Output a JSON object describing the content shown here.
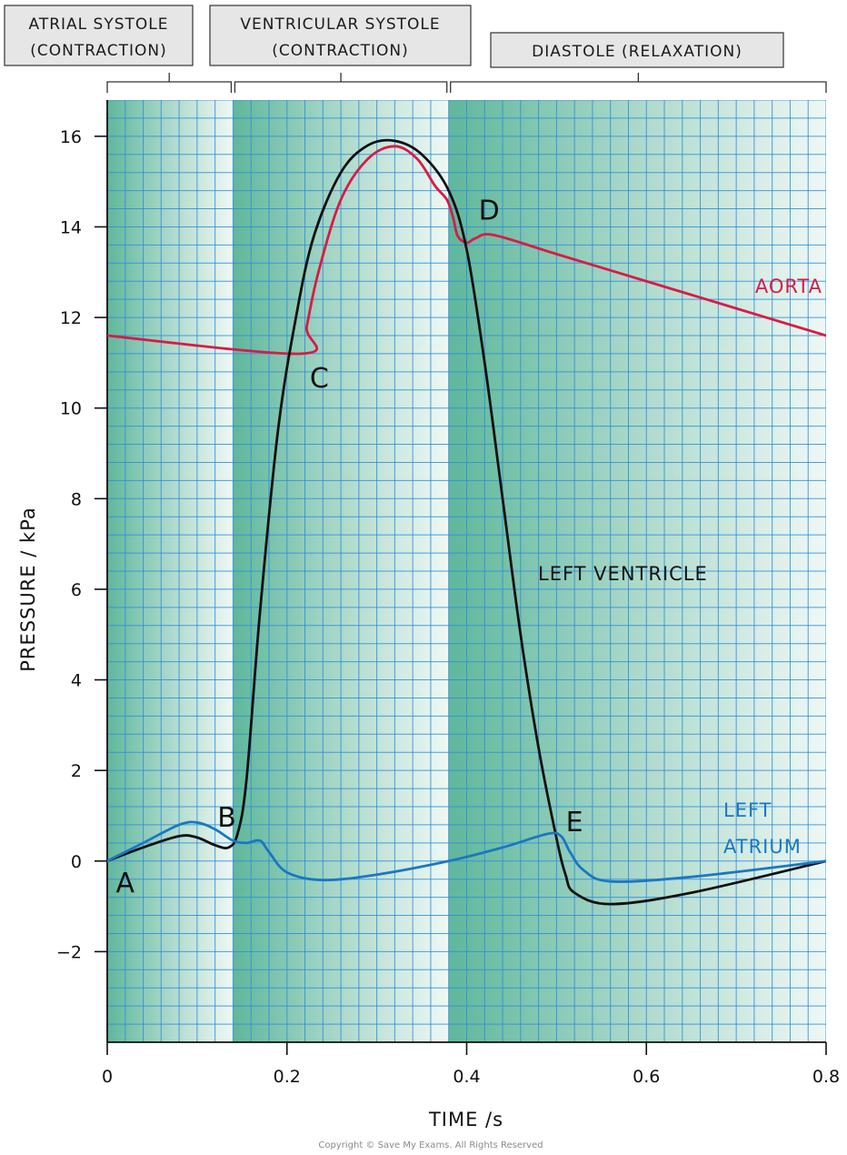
{
  "chart_data": {
    "type": "line",
    "xlabel": "TIME /s",
    "ylabel": "PRESSURE / kPa",
    "xlim": [
      0,
      0.8
    ],
    "ylim": [
      -4,
      16.8
    ],
    "xticks": [
      0,
      0.2,
      0.4,
      0.6,
      0.8
    ],
    "xtick_labels": [
      "0",
      "0.2",
      "0.4",
      "0.6",
      "0.8"
    ],
    "yticks": [
      -2,
      0,
      2,
      4,
      6,
      8,
      10,
      12,
      14,
      16
    ],
    "ytick_labels": [
      "−2",
      "0",
      "2",
      "4",
      "6",
      "8",
      "10",
      "12",
      "14",
      "16"
    ],
    "grid": true,
    "phases": [
      {
        "label_line1": "ATRIAL SYSTOLE",
        "label_line2": "(CONTRACTION)",
        "start": 0,
        "end": 0.14
      },
      {
        "label_line1": "VENTRICULAR SYSTOLE",
        "label_line2": "(CONTRACTION)",
        "start": 0.14,
        "end": 0.38
      },
      {
        "label_line1": "DIASTOLE (RELAXATION)",
        "label_line2": "",
        "start": 0.38,
        "end": 0.8
      }
    ],
    "series": [
      {
        "name": "AORTA",
        "color": "#d81b46",
        "x": [
          0,
          0.216,
          0.222,
          0.235,
          0.26,
          0.29,
          0.32,
          0.345,
          0.365,
          0.378,
          0.385,
          0.39,
          0.4,
          0.41,
          0.43,
          0.5,
          0.6,
          0.7,
          0.8
        ],
        "y": [
          11.6,
          11.2,
          11.8,
          13.0,
          14.6,
          15.5,
          15.78,
          15.5,
          14.9,
          14.6,
          14.2,
          13.8,
          13.65,
          13.75,
          13.82,
          13.4,
          12.8,
          12.2,
          11.6
        ]
      },
      {
        "name": "LEFT VENTRICLE",
        "color": "#111111",
        "x": [
          0,
          0.04,
          0.08,
          0.1,
          0.12,
          0.135,
          0.145,
          0.155,
          0.17,
          0.19,
          0.21,
          0.23,
          0.26,
          0.29,
          0.32,
          0.35,
          0.38,
          0.4,
          0.42,
          0.44,
          0.46,
          0.48,
          0.5,
          0.51,
          0.52,
          0.56,
          0.65,
          0.8
        ],
        "y": [
          0.0,
          0.3,
          0.55,
          0.52,
          0.35,
          0.3,
          0.6,
          1.8,
          5.5,
          9.5,
          12.0,
          13.8,
          15.2,
          15.8,
          15.9,
          15.6,
          14.8,
          13.5,
          11.0,
          8.0,
          5.0,
          2.5,
          0.5,
          -0.3,
          -0.7,
          -0.95,
          -0.7,
          0.0
        ]
      },
      {
        "name": "LEFT ATRIUM",
        "name_line1": "LEFT",
        "name_line2": "ATRIUM",
        "color": "#1a78c2",
        "x": [
          0,
          0.04,
          0.08,
          0.1,
          0.12,
          0.14,
          0.155,
          0.17,
          0.18,
          0.2,
          0.24,
          0.3,
          0.38,
          0.44,
          0.49,
          0.505,
          0.515,
          0.53,
          0.56,
          0.65,
          0.8
        ],
        "y": [
          0.0,
          0.4,
          0.8,
          0.85,
          0.7,
          0.45,
          0.4,
          0.45,
          0.2,
          -0.25,
          -0.42,
          -0.3,
          0.0,
          0.3,
          0.6,
          0.55,
          0.2,
          -0.2,
          -0.45,
          -0.35,
          0.0
        ]
      }
    ],
    "annotations": [
      {
        "text": "A",
        "x": 0.02,
        "y": -0.45
      },
      {
        "text": "B",
        "x": 0.133,
        "y": 1.0
      },
      {
        "text": "C",
        "x": 0.236,
        "y": 10.7
      },
      {
        "text": "D",
        "x": 0.425,
        "y": 14.4
      },
      {
        "text": "E",
        "x": 0.52,
        "y": 0.9
      }
    ]
  },
  "copyright": "Copyright © Save My Exams. All Rights Reserved"
}
